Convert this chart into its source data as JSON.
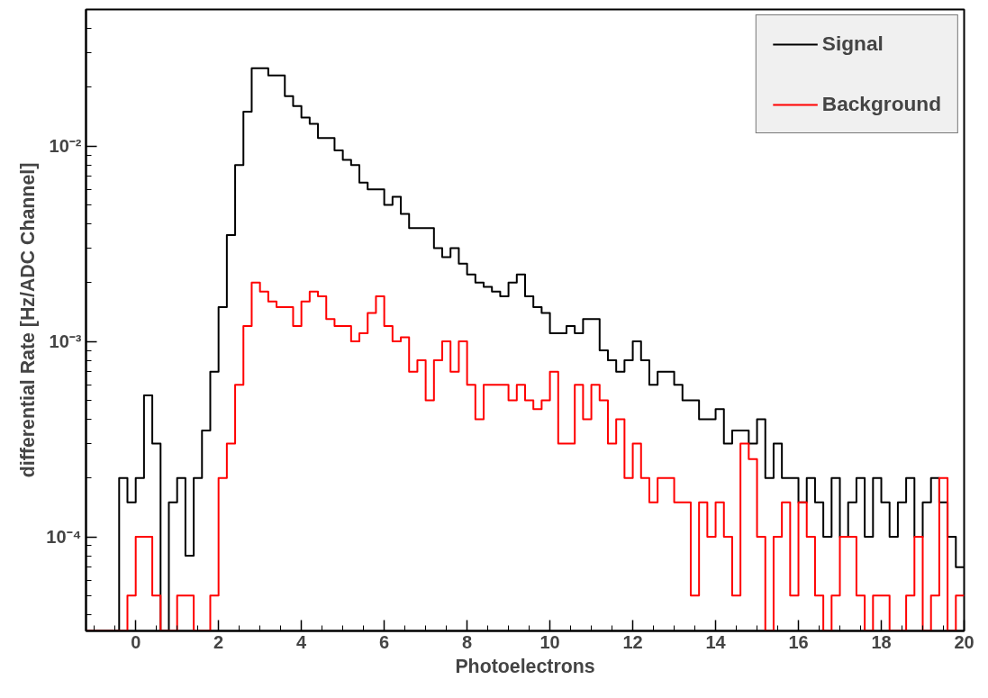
{
  "chart_data": {
    "type": "histogram",
    "xlabel": "Photoelectrons",
    "ylabel": "differential Rate [Hz/ADC Channel]",
    "log": "y",
    "grid": false,
    "legend": "top right",
    "xlim": [
      -1.2,
      20
    ],
    "xticks": [
      0,
      2,
      4,
      6,
      8,
      10,
      12,
      14,
      16,
      18,
      20
    ],
    "ylim": [
      3.3e-05,
      0.05
    ],
    "yticks": [
      {
        "value": 0.0001,
        "label": "10⁻⁴"
      },
      {
        "value": 0.001,
        "label": "10⁻³"
      },
      {
        "value": 0.01,
        "label": "10⁻²"
      }
    ],
    "bins": [
      -1.2,
      -1.0,
      -0.8,
      -0.6,
      -0.4,
      -0.2,
      0.0,
      0.2,
      0.4,
      0.6,
      0.8,
      1.0,
      1.2,
      1.4,
      1.6,
      1.8,
      2.0,
      2.2,
      2.4,
      2.6,
      2.8,
      3.0,
      3.2,
      3.4,
      3.6,
      3.8,
      4.0,
      4.2,
      4.4,
      4.6,
      4.8,
      5.0,
      5.2,
      5.4,
      5.6,
      5.8,
      6.0,
      6.2,
      6.4,
      6.6,
      6.8,
      7.0,
      7.2,
      7.4,
      7.6,
      7.8,
      8.0,
      8.2,
      8.4,
      8.6,
      8.8,
      9.0,
      9.2,
      9.4,
      9.6,
      9.8,
      10.0,
      10.2,
      10.4,
      10.6,
      10.8,
      11.0,
      11.2,
      11.4,
      11.6,
      11.8,
      12.0,
      12.2,
      12.4,
      12.6,
      12.8,
      13.0,
      13.2,
      13.4,
      13.6,
      13.8,
      14.0,
      14.2,
      14.4,
      14.6,
      14.8,
      15.0,
      15.2,
      15.4,
      15.6,
      15.8,
      16.0,
      16.2,
      16.4,
      16.6,
      16.8,
      17.0,
      17.2,
      17.4,
      17.6,
      17.8,
      18.0,
      18.2,
      18.4,
      18.6,
      18.8,
      19.0,
      19.2,
      19.4,
      19.6,
      19.8,
      20.0
    ],
    "series": [
      {
        "name": "Signal",
        "color": "#000000",
        "values": [
          null,
          null,
          null,
          null,
          0.0002,
          0.00015,
          0.0002,
          0.00053,
          0.0003,
          null,
          0.00015,
          0.0002,
          8e-05,
          0.0002,
          0.00035,
          0.0007,
          0.0015,
          0.0035,
          0.008,
          0.015,
          0.025,
          0.025,
          0.023,
          0.023,
          0.018,
          0.016,
          0.014,
          0.013,
          0.011,
          0.011,
          0.0095,
          0.0085,
          0.008,
          0.0065,
          0.006,
          0.006,
          0.005,
          0.0055,
          0.0045,
          0.0038,
          0.0038,
          0.0038,
          0.003,
          0.0027,
          0.003,
          0.0025,
          0.0022,
          0.002,
          0.0019,
          0.0018,
          0.0017,
          0.002,
          0.0022,
          0.0017,
          0.0015,
          0.0014,
          0.0011,
          0.0011,
          0.0012,
          0.0011,
          0.0013,
          0.0013,
          0.0009,
          0.0008,
          0.0007,
          0.0008,
          0.001,
          0.0008,
          0.0006,
          0.0007,
          0.0007,
          0.0006,
          0.0005,
          0.0005,
          0.0004,
          0.0004,
          0.00045,
          0.0003,
          0.00035,
          0.00035,
          0.0003,
          0.0004,
          0.0002,
          0.0003,
          0.0002,
          0.0002,
          0.00015,
          0.0002,
          0.00015,
          0.0001,
          0.0002,
          0.0001,
          0.00015,
          0.0002,
          0.0001,
          0.0002,
          0.00015,
          0.0001,
          0.00015,
          0.0002,
          0.0001,
          0.00015,
          0.0002,
          0.00015,
          0.0001,
          7e-05
        ]
      },
      {
        "name": "Background",
        "color": "#ff0000",
        "values": [
          null,
          null,
          null,
          null,
          null,
          5e-05,
          0.0001,
          0.0001,
          5e-05,
          null,
          null,
          5e-05,
          5e-05,
          null,
          null,
          5e-05,
          0.0002,
          0.0003,
          0.0006,
          0.0012,
          0.002,
          0.0018,
          0.0016,
          0.0015,
          0.0015,
          0.0012,
          0.0016,
          0.0018,
          0.0017,
          0.0013,
          0.0012,
          0.0012,
          0.001,
          0.0011,
          0.0014,
          0.0017,
          0.0012,
          0.001,
          0.00105,
          0.0007,
          0.0008,
          0.0005,
          0.0008,
          0.001,
          0.0007,
          0.001,
          0.0006,
          0.0004,
          0.0006,
          0.0006,
          0.0006,
          0.0005,
          0.0006,
          0.0005,
          0.00045,
          0.0005,
          0.0007,
          0.0003,
          0.0003,
          0.0006,
          0.0004,
          0.0006,
          0.0005,
          0.0003,
          0.0004,
          0.0002,
          0.0003,
          0.0002,
          0.00015,
          0.0002,
          0.0002,
          0.00015,
          0.00015,
          5e-05,
          0.00015,
          0.0001,
          0.00015,
          0.0001,
          5e-05,
          0.0003,
          0.00025,
          0.0001,
          null,
          0.0001,
          0.00015,
          5e-05,
          0.00015,
          0.0001,
          5e-05,
          null,
          5e-05,
          0.0001,
          0.0001,
          5e-05,
          null,
          5e-05,
          5e-05,
          null,
          null,
          5e-05,
          0.0001,
          null,
          5e-05,
          0.0002,
          null,
          5e-05
        ]
      }
    ]
  }
}
